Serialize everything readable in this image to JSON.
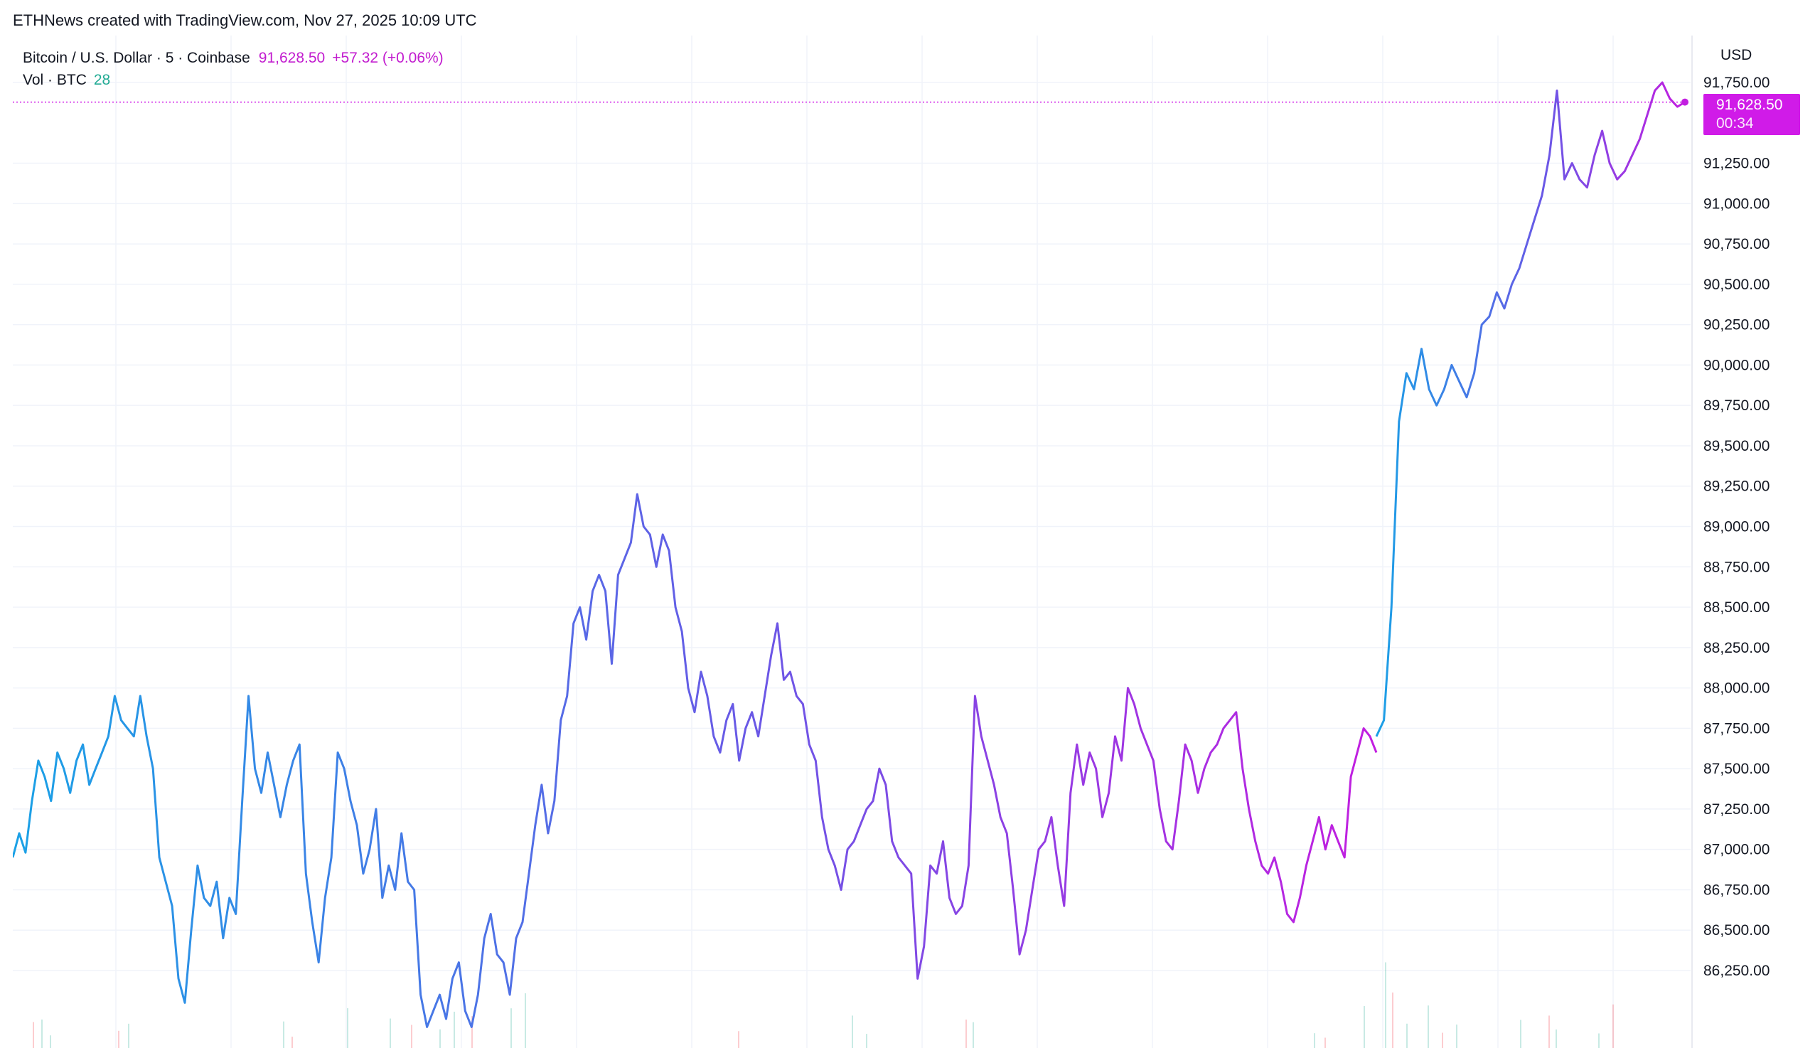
{
  "header": {
    "attribution": "ETHNews created with TradingView.com, Nov 27, 2025 10:09 UTC"
  },
  "legend": {
    "symbol": "Bitcoin / U.S. Dollar · 5 · Coinbase",
    "last_price": "91,628.50",
    "change": "+57.32 (+0.06%)",
    "volume_label": "Vol · BTC",
    "volume_value": "28"
  },
  "axis": {
    "currency": "USD"
  },
  "price_tag": {
    "price": "91,628.50",
    "countdown": "00:34"
  },
  "colors": {
    "line_start": "#1aa1e6",
    "line_mid": "#6b57e6",
    "line_end": "#c21ee0",
    "price_tag": "#d01be8",
    "grid": "#f0f3fa",
    "volume_up": "#22ab94",
    "volume_down": "#f23645"
  },
  "chart_data": {
    "type": "line",
    "title": "Bitcoin / U.S. Dollar · 5 · Coinbase",
    "interval": "5",
    "exchange": "Coinbase",
    "currency": "USD",
    "ylim": [
      86000,
      91900
    ],
    "y_ticks": [
      86250,
      86500,
      86750,
      87000,
      87250,
      87500,
      87750,
      88000,
      88250,
      88500,
      88750,
      89000,
      89250,
      89500,
      89750,
      90000,
      90250,
      90500,
      90750,
      91000,
      91250,
      91750
    ],
    "y_tick_labels": [
      "86,250.00",
      "86,500.00",
      "86,750.00",
      "87,000.00",
      "87,250.00",
      "87,500.00",
      "87,750.00",
      "88,000.00",
      "88,250.00",
      "88,500.00",
      "88,750.00",
      "89,000.00",
      "89,250.00",
      "89,500.00",
      "89,750.00",
      "90,000.00",
      "90,250.00",
      "90,500.00",
      "90,750.00",
      "91,000.00",
      "91,250.00",
      "91,750.00"
    ],
    "last_price": 91628.5,
    "grid": true,
    "series": [
      {
        "values": [
          86950,
          87100,
          86980,
          87300,
          87550,
          87450,
          87300,
          87600,
          87500,
          87350,
          87550,
          87650,
          87400,
          87500,
          87600,
          87700,
          87950,
          87800,
          87750,
          87700,
          87950,
          87700,
          87500,
          86950,
          86800,
          86650,
          86200,
          86050,
          86500,
          86900,
          86700,
          86650,
          86800,
          86450,
          86700,
          86600,
          87300,
          87950,
          87500,
          87350,
          87600,
          87400,
          87200,
          87400,
          87550,
          87650,
          86850,
          86550,
          86300,
          86700,
          86950,
          87600,
          87500,
          87300,
          87150,
          86850,
          87000,
          87250,
          86700,
          86900,
          86750,
          87100,
          86800,
          86750,
          86100,
          85900,
          86000,
          86100,
          85950,
          86200,
          86300,
          86000,
          85900,
          86100,
          86450,
          86600,
          86350,
          86300,
          86100,
          86450,
          86550,
          86850,
          87150,
          87400,
          87100,
          87300,
          87800,
          87950,
          88400,
          88500,
          88300,
          88600,
          88700,
          88600,
          88150,
          88700,
          88800,
          88900,
          89200,
          89000,
          88950,
          88750,
          88950,
          88850,
          88500,
          88350,
          88000,
          87850,
          88100,
          87950,
          87700,
          87600,
          87800,
          87900,
          87550,
          87750,
          87850,
          87700,
          87950,
          88200,
          88400,
          88050,
          88100,
          87950,
          87900,
          87650,
          87550,
          87200,
          87000,
          86900,
          86750,
          87000,
          87050,
          87150,
          87250,
          87300,
          87500,
          87400,
          87050,
          86950,
          86900,
          86850,
          86200,
          86400,
          86900,
          86850,
          87050,
          86700,
          86600,
          86650,
          86900,
          87950,
          87700,
          87550,
          87400,
          87200,
          87100,
          86750,
          86350,
          86500,
          86750,
          87000,
          87050,
          87200,
          86900,
          86650,
          87350,
          87650,
          87400,
          87600,
          87500,
          87200,
          87350,
          87700,
          87550,
          88000,
          87900,
          87750,
          87650,
          87550,
          87250,
          87050,
          87000,
          87300,
          87650,
          87550,
          87350,
          87500,
          87600,
          87650,
          87750,
          87800,
          87850,
          87500,
          87250,
          87050,
          86900,
          86850,
          86950,
          86800,
          86600,
          86550,
          86700,
          86900,
          87050,
          87200,
          87000,
          87150,
          87050,
          86950,
          87450,
          87600,
          87750,
          87700,
          87600
        ]
      },
      {
        "values": [
          87700,
          87800,
          88500,
          89650,
          89950,
          89850,
          90100,
          89850,
          89750,
          89850,
          90000,
          89900,
          89800,
          89950,
          90250,
          90300,
          90450,
          90350,
          90500,
          90600,
          90750,
          90900,
          91050,
          91300,
          91700,
          91150,
          91250,
          91150,
          91100,
          91300,
          91450,
          91250,
          91150,
          91200,
          91300,
          91400,
          91550,
          91700,
          91750,
          91650,
          91600,
          91628.5
        ]
      }
    ]
  }
}
